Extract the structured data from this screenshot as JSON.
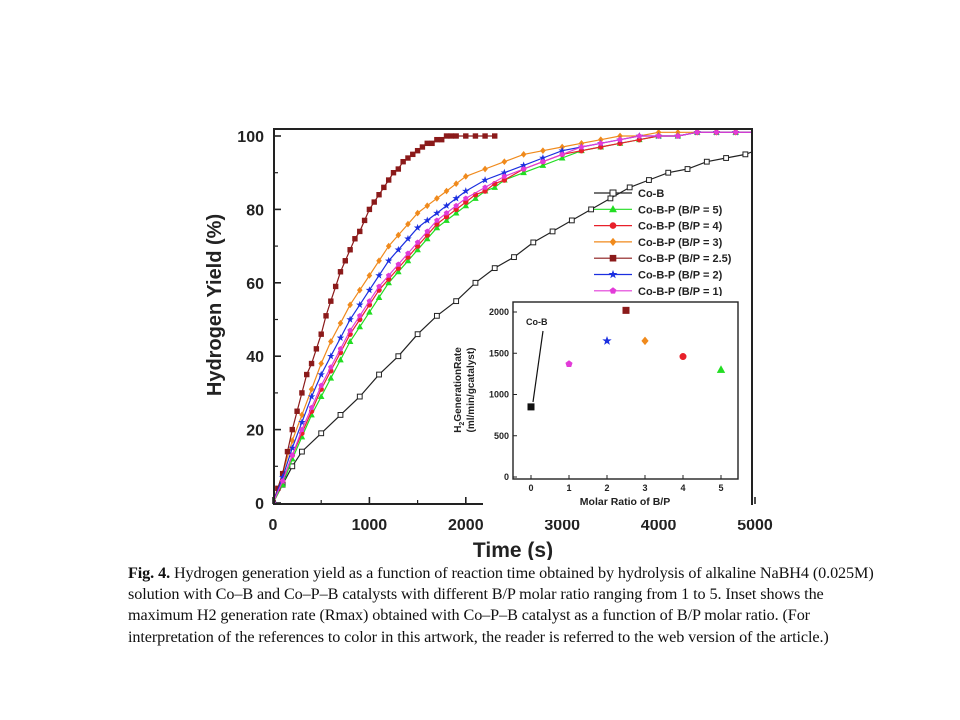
{
  "chart_data": [
    {
      "type": "line",
      "xlabel": "Time (s)",
      "ylabel": "Hydrogen Yield (%)",
      "xlim": [
        0,
        5000
      ],
      "ylim": [
        0,
        100
      ],
      "xticks": [
        0,
        1000,
        2000,
        3000,
        4000,
        5000
      ],
      "yticks": [
        0,
        20,
        40,
        60,
        80,
        100
      ],
      "xtick_labels": [
        "0",
        "1000",
        "2000",
        "3000",
        "4000",
        "5000"
      ],
      "ytick_labels": [
        "0",
        "20",
        "40",
        "60",
        "80",
        "100"
      ],
      "legend_position": "right-middle",
      "series": [
        {
          "name": "Co-B",
          "color": "#222222",
          "marker": "square-open",
          "x": [
            0,
            100,
            200,
            300,
            500,
            700,
            900,
            1100,
            1300,
            1500,
            1700,
            1900,
            2100,
            2300,
            2500,
            2700,
            2900,
            3100,
            3300,
            3500,
            3700,
            3900,
            4100,
            4300,
            4500,
            4700,
            4900,
            5000
          ],
          "y": [
            0,
            5,
            10,
            14,
            19,
            24,
            29,
            35,
            40,
            46,
            51,
            55,
            60,
            64,
            67,
            71,
            74,
            77,
            80,
            83,
            86,
            88,
            90,
            91,
            93,
            94,
            95,
            96
          ]
        },
        {
          "name": "Co-B-P (B/P = 5)",
          "color": "#22dd22",
          "marker": "triangle",
          "x": [
            0,
            100,
            200,
            300,
            400,
            500,
            600,
            700,
            800,
            900,
            1000,
            1100,
            1200,
            1300,
            1400,
            1500,
            1600,
            1700,
            1800,
            1900,
            2000,
            2100,
            2200,
            2300,
            2400,
            2600,
            2800,
            3000,
            3200,
            3400,
            3600,
            3800,
            4000,
            4200,
            4400,
            4600,
            4800,
            5000
          ],
          "y": [
            0,
            5,
            12,
            18,
            24,
            29,
            34,
            39,
            44,
            48,
            52,
            56,
            60,
            63,
            66,
            69,
            72,
            75,
            77,
            79,
            81,
            83,
            85,
            86,
            88,
            90,
            92,
            94,
            96,
            97,
            98,
            99,
            100,
            100,
            101,
            101,
            101,
            101
          ]
        },
        {
          "name": "Co-B-P (B/P = 4)",
          "color": "#e8202a",
          "marker": "circle",
          "x": [
            0,
            100,
            200,
            300,
            400,
            500,
            600,
            700,
            800,
            900,
            1000,
            1100,
            1200,
            1300,
            1400,
            1500,
            1600,
            1700,
            1800,
            1900,
            2000,
            2100,
            2200,
            2300,
            2400,
            2600,
            2800,
            3000,
            3200,
            3400,
            3600,
            3800,
            4000,
            4200,
            4400,
            4600,
            4800,
            5000
          ],
          "y": [
            0,
            6,
            13,
            19,
            25,
            31,
            36,
            41,
            46,
            50,
            54,
            58,
            61,
            64,
            67,
            70,
            73,
            76,
            78,
            80,
            82,
            84,
            85,
            87,
            88,
            91,
            93,
            95,
            96,
            97,
            98,
            99,
            100,
            100,
            101,
            101,
            101,
            101
          ]
        },
        {
          "name": "Co-B-P (B/P = 3)",
          "color": "#f08a1c",
          "marker": "diamond",
          "x": [
            0,
            100,
            200,
            300,
            400,
            500,
            600,
            700,
            800,
            900,
            1000,
            1100,
            1200,
            1300,
            1400,
            1500,
            1600,
            1700,
            1800,
            1900,
            2000,
            2200,
            2400,
            2600,
            2800,
            3000,
            3200,
            3400,
            3600,
            3800,
            4000,
            4200,
            4400,
            4600,
            4800,
            5000
          ],
          "y": [
            0,
            8,
            17,
            24,
            31,
            38,
            44,
            49,
            54,
            58,
            62,
            66,
            70,
            73,
            76,
            79,
            81,
            83,
            85,
            87,
            89,
            91,
            93,
            95,
            96,
            97,
            98,
            99,
            100,
            100,
            101,
            101,
            101,
            101,
            101,
            101
          ]
        },
        {
          "name": "Co-B-P (B/P = 2.5)",
          "color": "#8b1a1a",
          "marker": "square",
          "x": [
            0,
            50,
            100,
            150,
            200,
            250,
            300,
            350,
            400,
            450,
            500,
            550,
            600,
            650,
            700,
            750,
            800,
            850,
            900,
            950,
            1000,
            1050,
            1100,
            1150,
            1200,
            1250,
            1300,
            1350,
            1400,
            1450,
            1500,
            1550,
            1600,
            1650,
            1700,
            1750,
            1800,
            1850,
            1900,
            2000,
            2100,
            2200,
            2300
          ],
          "y": [
            0,
            4,
            8,
            14,
            20,
            25,
            30,
            35,
            38,
            42,
            46,
            51,
            55,
            59,
            63,
            66,
            69,
            72,
            74,
            77,
            80,
            82,
            84,
            86,
            88,
            90,
            91,
            93,
            94,
            95,
            96,
            97,
            98,
            98,
            99,
            99,
            100,
            100,
            100,
            100,
            100,
            100,
            100
          ]
        },
        {
          "name": "Co-B-P (B/P = 2)",
          "color": "#1b2fe0",
          "marker": "star",
          "x": [
            0,
            100,
            200,
            300,
            400,
            500,
            600,
            700,
            800,
            900,
            1000,
            1100,
            1200,
            1300,
            1400,
            1500,
            1600,
            1700,
            1800,
            1900,
            2000,
            2200,
            2400,
            2600,
            2800,
            3000,
            3200,
            3400,
            3600,
            3800,
            4000,
            4200,
            4400,
            4600,
            4800,
            5000
          ],
          "y": [
            0,
            7,
            15,
            22,
            29,
            35,
            40,
            45,
            50,
            54,
            58,
            62,
            66,
            69,
            72,
            75,
            77,
            79,
            81,
            83,
            85,
            88,
            90,
            92,
            94,
            96,
            97,
            98,
            99,
            100,
            100,
            100,
            101,
            101,
            101,
            101
          ]
        },
        {
          "name": "Co-B-P (B/P = 1)",
          "color": "#e23bd8",
          "marker": "pentagon",
          "x": [
            0,
            100,
            200,
            300,
            400,
            500,
            600,
            700,
            800,
            900,
            1000,
            1100,
            1200,
            1300,
            1400,
            1500,
            1600,
            1700,
            1800,
            1900,
            2000,
            2200,
            2400,
            2600,
            2800,
            3000,
            3200,
            3400,
            3600,
            3800,
            4000,
            4200,
            4400,
            4600,
            4800,
            5000
          ],
          "y": [
            0,
            6,
            13,
            20,
            26,
            32,
            37,
            42,
            47,
            51,
            55,
            59,
            62,
            65,
            68,
            71,
            74,
            77,
            79,
            81,
            83,
            86,
            89,
            91,
            93,
            95,
            97,
            98,
            99,
            100,
            100,
            100,
            101,
            101,
            101,
            101
          ]
        }
      ]
    },
    {
      "type": "scatter",
      "xlabel": "Molar Ratio of B/P",
      "ylabel_main": "GenerationRate",
      "ylabel_sub": "(ml/min/gcatalyst)",
      "ylabel_prefix": "H",
      "ylabel_prefix_sub": "2",
      "xlim": [
        -0.5,
        5.5
      ],
      "ylim": [
        0,
        2100
      ],
      "xticks": [
        0,
        1,
        2,
        3,
        4,
        5
      ],
      "yticks": [
        0,
        500,
        1000,
        1500,
        2000
      ],
      "xtick_labels": [
        "0",
        "1",
        "2",
        "3",
        "4",
        "5"
      ],
      "ytick_labels": [
        "0",
        "500",
        "1000",
        "1500",
        "2000"
      ],
      "annotation": "Co-B",
      "points": [
        {
          "x": 0,
          "y": 850,
          "marker": "square",
          "color": "#111111"
        },
        {
          "x": 1,
          "y": 1370,
          "marker": "pentagon",
          "color": "#e23bd8"
        },
        {
          "x": 2,
          "y": 1650,
          "marker": "star",
          "color": "#1b2fe0"
        },
        {
          "x": 2.5,
          "y": 2020,
          "marker": "square",
          "color": "#8b1a1a"
        },
        {
          "x": 3,
          "y": 1650,
          "marker": "diamond",
          "color": "#f08a1c"
        },
        {
          "x": 4,
          "y": 1460,
          "marker": "circle",
          "color": "#e8202a"
        },
        {
          "x": 5,
          "y": 1300,
          "marker": "triangle",
          "color": "#22dd22"
        }
      ]
    }
  ],
  "caption": {
    "label": "Fig. 4.",
    "text": " Hydrogen generation yield as a function of reaction time obtained by hydrolysis of alkaline NaBH4 (0.025M) solution with Co–B and Co–P–B catalysts with different B/P molar ratio ranging from 1 to 5. Inset shows the maximum H2 generation rate (Rmax) obtained with Co–P–B catalyst as a function of B/P molar ratio. (For interpretation of the references to color in this artwork, the reader is referred to the web version of the article.)"
  }
}
